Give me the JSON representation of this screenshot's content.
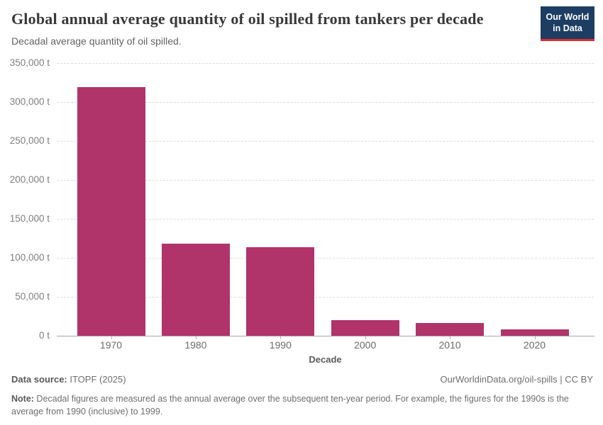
{
  "header": {
    "logo": {
      "line1": "Our World",
      "line2": "in Data"
    }
  },
  "chart_data": {
    "type": "bar",
    "title": "Global annual average quantity of oil spilled from tankers per decade",
    "subtitle": "Decadal average quantity of oil spilled.",
    "categories": [
      "1970",
      "1980",
      "1990",
      "2000",
      "2010",
      "2020"
    ],
    "values": [
      319000,
      118000,
      113500,
      20000,
      16500,
      8500
    ],
    "xlabel": "Decade",
    "ylabel": "",
    "ylim": [
      0,
      350000
    ],
    "yticks": [
      {
        "value": 0,
        "label": "0 t"
      },
      {
        "value": 50000,
        "label": "50,000 t"
      },
      {
        "value": 100000,
        "label": "100,000 t"
      },
      {
        "value": 150000,
        "label": "150,000 t"
      },
      {
        "value": 200000,
        "label": "200,000 t"
      },
      {
        "value": 250000,
        "label": "250,000 t"
      },
      {
        "value": 300000,
        "label": "300,000 t"
      },
      {
        "value": 350000,
        "label": "350,000 t"
      }
    ],
    "grid": "horizontal-dashed",
    "legend": "none",
    "bar_color": "#b0336a"
  },
  "footer": {
    "datasource_label": "Data source:",
    "datasource_value": " ITOPF (2025)",
    "attribution": "OurWorldinData.org/oil-spills | CC BY",
    "note_label": "Note:",
    "note_text": " Decadal figures are measured as the annual average over the subsequent ten-year period. For example, the figures for the 1990s is the average from 1990 (inclusive) to 1999."
  }
}
